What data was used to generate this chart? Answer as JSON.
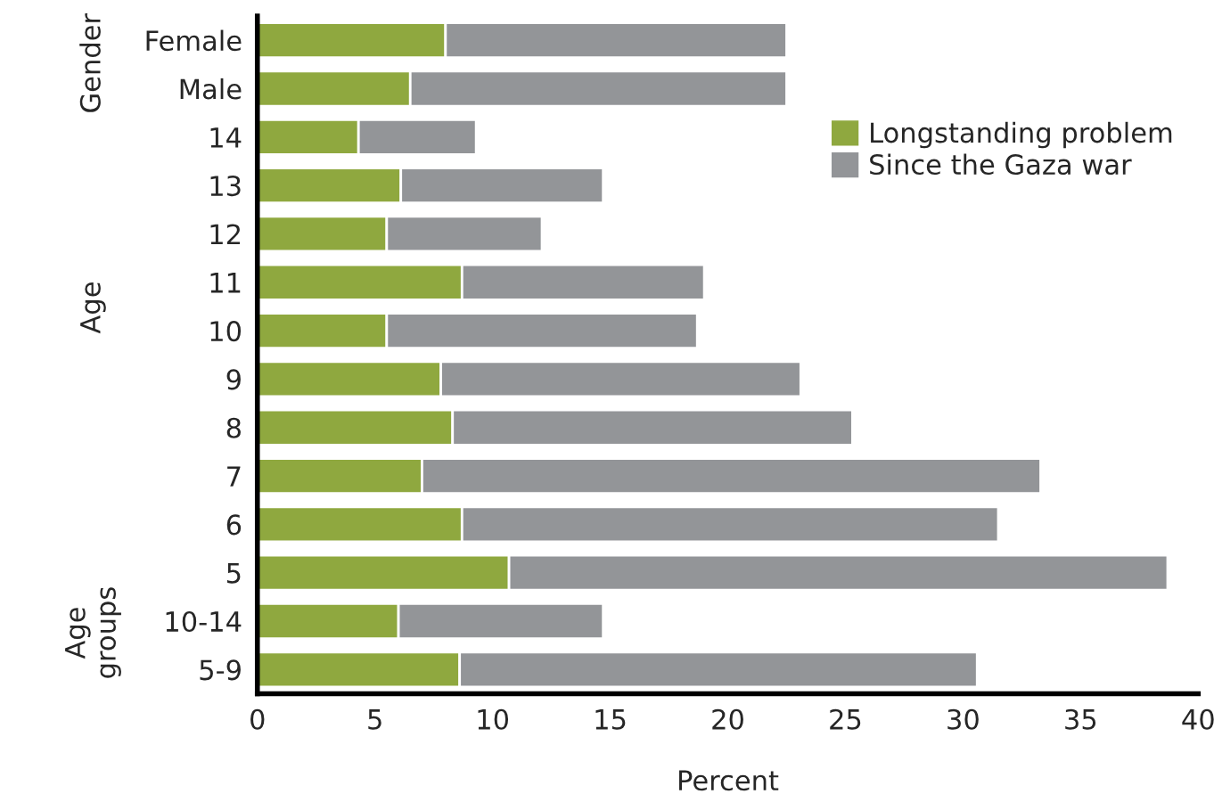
{
  "chart_data": {
    "type": "bar",
    "orientation": "horizontal",
    "stacked": true,
    "categories": [
      "Female",
      "Male",
      "14",
      "13",
      "12",
      "11",
      "10",
      "9",
      "8",
      "7",
      "6",
      "5",
      "10-14",
      "5-9"
    ],
    "series": [
      {
        "name": "Longstanding problem",
        "color": "#8fa83f",
        "values": [
          8.0,
          6.5,
          4.3,
          6.1,
          5.5,
          8.7,
          5.5,
          7.8,
          8.3,
          7.0,
          8.7,
          10.7,
          6.0,
          8.6
        ]
      },
      {
        "name": "Since the Gaza war",
        "color": "#939598",
        "values": [
          14.5,
          16.0,
          5.0,
          8.6,
          6.6,
          10.3,
          13.2,
          15.3,
          17.0,
          26.3,
          22.8,
          28.0,
          8.7,
          22.0
        ]
      }
    ],
    "xlabel": "Percent",
    "xlim": [
      0,
      40
    ],
    "xticks": [
      0,
      5,
      10,
      15,
      20,
      25,
      30,
      35,
      40
    ],
    "annotations": [
      "Gender",
      "Age",
      "Age\ngroups"
    ],
    "legend": "top right",
    "grid": false
  }
}
